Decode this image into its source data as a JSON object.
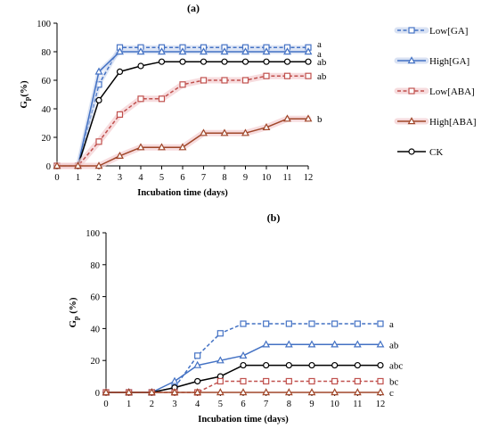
{
  "colors": {
    "low_ga": "#4472c4",
    "high_ga": "#4472c4",
    "low_aba": "#c0504d",
    "high_aba": "#a0472a",
    "ck": "#000000",
    "band_blue": "#c9d6ef",
    "band_red": "#f3cdd0"
  },
  "legend": {
    "items": [
      {
        "key": "low_ga",
        "label": "Low[GA]",
        "marker": "square",
        "dash": true,
        "color": "#4472c4",
        "band": "#c9d6ef"
      },
      {
        "key": "high_ga",
        "label": "High[GA]",
        "marker": "triangle",
        "dash": false,
        "color": "#4472c4",
        "band": "#c9d6ef"
      },
      {
        "key": "low_aba",
        "label": "Low[ABA]",
        "marker": "square",
        "dash": true,
        "color": "#c0504d",
        "band": "#f3cdd0"
      },
      {
        "key": "high_aba",
        "label": "High[ABA]",
        "marker": "triangle",
        "dash": false,
        "color": "#a0472a",
        "band": "#f3cdd0"
      },
      {
        "key": "ck",
        "label": "CK",
        "marker": "circle",
        "dash": false,
        "color": "#000000",
        "band": null
      }
    ]
  },
  "chart_data": [
    {
      "type": "line",
      "title": "(a)",
      "xlabel": "Incubation time (days)",
      "ylabel_main": "G",
      "ylabel_sub": "p",
      "ylabel_tail": "(%)",
      "xlim": [
        0,
        12
      ],
      "ylim": [
        0,
        100
      ],
      "xticks": [
        0,
        1,
        2,
        3,
        4,
        5,
        6,
        7,
        8,
        9,
        10,
        11,
        12
      ],
      "yticks": [
        0,
        20,
        40,
        60,
        80,
        100
      ],
      "x": [
        0,
        1,
        2,
        3,
        4,
        5,
        6,
        7,
        8,
        9,
        10,
        11,
        12
      ],
      "series": [
        {
          "key": "low_ga",
          "name": "Low[GA]",
          "values": [
            0,
            0,
            57,
            83,
            83,
            83,
            83,
            83,
            83,
            83,
            83,
            83,
            83
          ],
          "letter": "a"
        },
        {
          "key": "high_ga",
          "name": "High[GA]",
          "values": [
            0,
            0,
            66,
            80,
            80,
            80,
            80,
            80,
            80,
            80,
            80,
            80,
            80
          ],
          "letter": "a"
        },
        {
          "key": "ck",
          "name": "CK",
          "values": [
            0,
            0,
            46,
            66,
            70,
            73,
            73,
            73,
            73,
            73,
            73,
            73,
            73
          ],
          "letter": "ab"
        },
        {
          "key": "low_aba",
          "name": "Low[ABA]",
          "values": [
            0,
            0,
            17,
            36,
            47,
            47,
            57,
            60,
            60,
            60,
            63,
            63,
            63
          ],
          "letter": "ab"
        },
        {
          "key": "high_aba",
          "name": "High[ABA]",
          "values": [
            0,
            0,
            0,
            7,
            13,
            13,
            13,
            23,
            23,
            23,
            27,
            33,
            33
          ],
          "letter": "b"
        }
      ]
    },
    {
      "type": "line",
      "title": "(b)",
      "xlabel": "Incubation time (days)",
      "ylabel_main": "G",
      "ylabel_sub": "p",
      "ylabel_tail": " (%)",
      "xlim": [
        0,
        12
      ],
      "ylim": [
        0,
        100
      ],
      "xticks": [
        0,
        1,
        2,
        3,
        4,
        5,
        6,
        7,
        8,
        9,
        10,
        11,
        12
      ],
      "yticks": [
        0,
        20,
        40,
        60,
        80,
        100
      ],
      "x": [
        0,
        1,
        2,
        3,
        4,
        5,
        6,
        7,
        8,
        9,
        10,
        11,
        12
      ],
      "series": [
        {
          "key": "low_ga",
          "name": "Low[GA]",
          "values": [
            0,
            0,
            0,
            3,
            23,
            37,
            43,
            43,
            43,
            43,
            43,
            43,
            43
          ],
          "letter": "a"
        },
        {
          "key": "high_ga",
          "name": "High[GA]",
          "values": [
            0,
            0,
            0,
            7,
            17,
            20,
            23,
            30,
            30,
            30,
            30,
            30,
            30
          ],
          "letter": "ab"
        },
        {
          "key": "ck",
          "name": "CK",
          "values": [
            0,
            0,
            0,
            3,
            7,
            10,
            17,
            17,
            17,
            17,
            17,
            17,
            17
          ],
          "letter": "abc"
        },
        {
          "key": "low_aba",
          "name": "Low[ABA]",
          "values": [
            0,
            0,
            0,
            0,
            0,
            7,
            7,
            7,
            7,
            7,
            7,
            7,
            7
          ],
          "letter": "bc"
        },
        {
          "key": "high_aba",
          "name": "High[ABA]",
          "values": [
            0,
            0,
            0,
            0,
            0,
            0,
            0,
            0,
            0,
            0,
            0,
            0,
            0
          ],
          "letter": "c"
        }
      ]
    }
  ]
}
